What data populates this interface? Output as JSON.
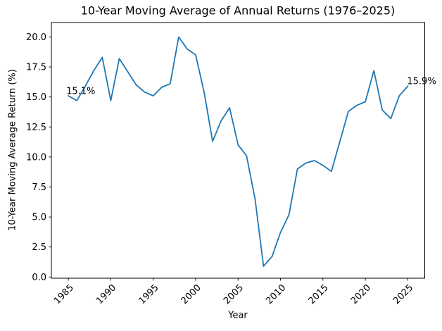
{
  "chart_data": {
    "type": "line",
    "title": "10-Year Moving Average of Annual Returns (1976–2025)",
    "xlabel": "Year",
    "ylabel": "10-Year Moving Average Return (%)",
    "x": [
      1985,
      1986,
      1987,
      1988,
      1989,
      1990,
      1991,
      1992,
      1993,
      1994,
      1995,
      1996,
      1997,
      1998,
      1999,
      2000,
      2001,
      2002,
      2003,
      2004,
      2005,
      2006,
      2007,
      2008,
      2009,
      2010,
      2011,
      2012,
      2013,
      2014,
      2015,
      2016,
      2017,
      2018,
      2019,
      2020,
      2021,
      2022,
      2023,
      2024,
      2025
    ],
    "values": [
      15.1,
      14.7,
      15.9,
      17.2,
      18.3,
      14.7,
      18.2,
      17.1,
      16.0,
      15.4,
      15.1,
      15.8,
      16.1,
      20.0,
      19.0,
      18.5,
      15.4,
      11.3,
      13.0,
      14.1,
      11.0,
      10.1,
      6.5,
      0.9,
      1.7,
      3.7,
      5.2,
      9.0,
      9.5,
      9.7,
      9.3,
      8.8,
      11.3,
      13.8,
      14.3,
      14.6,
      17.2,
      13.9,
      13.2,
      15.1,
      15.9
    ],
    "xlim": [
      1983,
      2027
    ],
    "ylim": [
      -0.1,
      21.2
    ],
    "xticks": [
      1985,
      1990,
      1995,
      2000,
      2005,
      2010,
      2015,
      2020,
      2025
    ],
    "yticks": [
      0.0,
      2.5,
      5.0,
      7.5,
      10.0,
      12.5,
      15.0,
      17.5,
      20.0
    ],
    "ytick_labels": [
      "0.0",
      "2.5",
      "5.0",
      "7.5",
      "10.0",
      "12.5",
      "15.0",
      "17.5",
      "20.0"
    ],
    "grid": false,
    "legend": "none",
    "line_color": "#1f77b4",
    "axis_color": "#000000",
    "annotations": [
      {
        "name": "annotation-first-point",
        "x": 1985,
        "y": 15.1,
        "label": "15.1%",
        "dx": -3,
        "dy": -2.5
      },
      {
        "name": "annotation-last-point",
        "x": 2025,
        "y": 15.9,
        "label": "15.9%",
        "dx": -1,
        "dy": -3
      }
    ]
  }
}
